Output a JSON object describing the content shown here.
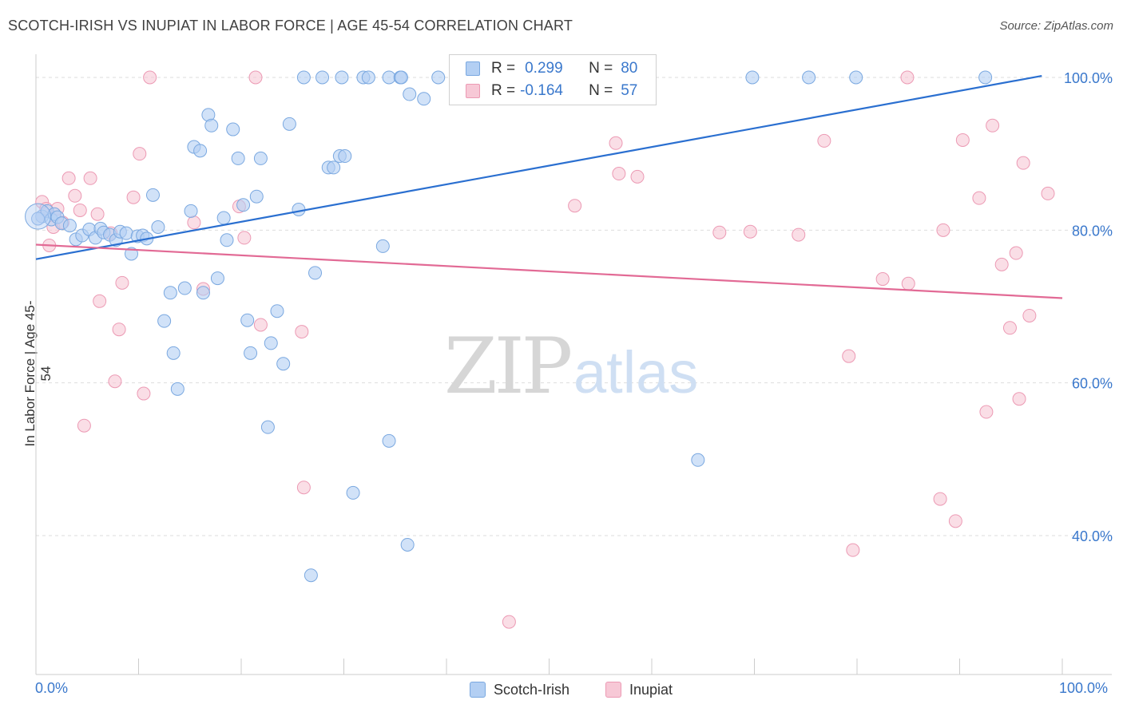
{
  "title": "SCOTCH-IRISH VS INUPIAT IN LABOR FORCE | AGE 45-54 CORRELATION CHART",
  "source": "Source: ZipAtlas.com",
  "watermark_zip": "ZIP",
  "watermark_atlas": "atlas",
  "legend": {
    "r_label": "R =",
    "n_label": "N =",
    "rows": [
      {
        "r": "0.299",
        "n": "80"
      },
      {
        "r": "-0.164",
        "n": "57"
      }
    ]
  },
  "colors": {
    "blue_fill": "#b3cff3",
    "blue_stroke": "#7aa8e0",
    "blue_line": "#2a6fd0",
    "pink_fill": "#f7c8d6",
    "pink_stroke": "#ec9ab4",
    "pink_line": "#e26a95",
    "axis_text": "#3a78cc"
  },
  "chart_data": {
    "type": "scatter",
    "title": "SCOTCH-IRISH VS INUPIAT IN LABOR FORCE | AGE 45-54 CORRELATION CHART",
    "xlabel": "",
    "ylabel": "In Labor Force | Age 45-54",
    "xlim": [
      0,
      100
    ],
    "ylim": [
      20,
      102
    ],
    "x_tick_labels": [
      "0.0%",
      "100.0%"
    ],
    "y_ticks": [
      100,
      80,
      60,
      40
    ],
    "y_tick_labels": [
      "100.0%",
      "80.0%",
      "60.0%",
      "40.0%"
    ],
    "grid": true,
    "legend_position": "bottom-center",
    "series": [
      {
        "name": "Scotch-Irish",
        "trend": {
          "x": [
            0,
            98
          ],
          "y": [
            76.2,
            100.2
          ]
        },
        "points": [
          [
            0.6,
            81.8
          ],
          [
            1.1,
            82.5
          ],
          [
            1.5,
            81.4
          ],
          [
            1.8,
            82.1
          ],
          [
            2.1,
            81.7
          ],
          [
            2.5,
            80.9
          ],
          [
            3.3,
            80.6
          ],
          [
            3.9,
            78.8
          ],
          [
            4.5,
            79.3
          ],
          [
            5.2,
            80.1
          ],
          [
            5.8,
            79.0
          ],
          [
            6.3,
            80.2
          ],
          [
            6.6,
            79.7
          ],
          [
            7.2,
            79.4
          ],
          [
            7.8,
            78.7
          ],
          [
            8.2,
            79.8
          ],
          [
            8.8,
            79.6
          ],
          [
            9.3,
            76.9
          ],
          [
            9.9,
            79.2
          ],
          [
            10.4,
            79.3
          ],
          [
            10.8,
            78.9
          ],
          [
            11.4,
            84.6
          ],
          [
            11.9,
            80.4
          ],
          [
            12.5,
            68.1
          ],
          [
            13.1,
            71.8
          ],
          [
            13.4,
            63.9
          ],
          [
            13.8,
            59.2
          ],
          [
            14.5,
            72.4
          ],
          [
            15.1,
            82.5
          ],
          [
            15.4,
            90.9
          ],
          [
            16.0,
            90.4
          ],
          [
            16.3,
            71.8
          ],
          [
            16.8,
            95.1
          ],
          [
            17.1,
            93.7
          ],
          [
            17.7,
            73.7
          ],
          [
            18.3,
            81.6
          ],
          [
            18.6,
            78.7
          ],
          [
            19.2,
            93.2
          ],
          [
            19.7,
            89.4
          ],
          [
            20.2,
            83.3
          ],
          [
            20.6,
            68.2
          ],
          [
            20.9,
            63.9
          ],
          [
            21.5,
            84.4
          ],
          [
            21.9,
            89.4
          ],
          [
            22.6,
            54.2
          ],
          [
            22.9,
            65.2
          ],
          [
            23.5,
            69.4
          ],
          [
            24.1,
            62.5
          ],
          [
            24.7,
            93.9
          ],
          [
            25.6,
            82.7
          ],
          [
            26.8,
            34.8
          ],
          [
            27.2,
            74.4
          ],
          [
            28.5,
            88.2
          ],
          [
            29.0,
            88.2
          ],
          [
            29.6,
            89.7
          ],
          [
            30.1,
            89.7
          ],
          [
            30.9,
            45.6
          ],
          [
            33.8,
            77.9
          ],
          [
            34.4,
            52.4
          ],
          [
            36.2,
            38.8
          ],
          [
            36.4,
            97.8
          ],
          [
            37.8,
            97.2
          ],
          [
            26.1,
            100
          ],
          [
            27.9,
            100
          ],
          [
            29.8,
            100
          ],
          [
            31.9,
            100
          ],
          [
            32.4,
            100
          ],
          [
            34.4,
            100
          ],
          [
            35.5,
            100
          ],
          [
            35.6,
            100
          ],
          [
            39.2,
            100
          ],
          [
            41.0,
            100
          ],
          [
            42.6,
            100
          ],
          [
            43.8,
            100
          ],
          [
            64.5,
            49.9
          ],
          [
            69.8,
            100
          ],
          [
            75.3,
            100
          ],
          [
            79.9,
            100
          ],
          [
            92.5,
            100
          ],
          [
            0.2,
            81.5
          ]
        ]
      },
      {
        "name": "Inupiat",
        "trend": {
          "x": [
            0,
            100
          ],
          "y": [
            78.1,
            71.1
          ]
        },
        "points": [
          [
            0.6,
            83.7
          ],
          [
            1.0,
            82.8
          ],
          [
            1.3,
            78.0
          ],
          [
            1.7,
            80.4
          ],
          [
            2.1,
            82.8
          ],
          [
            2.6,
            81.0
          ],
          [
            3.2,
            86.8
          ],
          [
            3.8,
            84.5
          ],
          [
            4.3,
            82.6
          ],
          [
            4.7,
            54.4
          ],
          [
            5.3,
            86.8
          ],
          [
            6.0,
            82.1
          ],
          [
            6.2,
            70.7
          ],
          [
            7.3,
            79.6
          ],
          [
            7.7,
            60.2
          ],
          [
            8.1,
            67.0
          ],
          [
            8.4,
            73.1
          ],
          [
            9.5,
            84.3
          ],
          [
            10.1,
            90.0
          ],
          [
            10.5,
            58.6
          ],
          [
            11.1,
            100.0
          ],
          [
            15.4,
            81.0
          ],
          [
            16.3,
            72.3
          ],
          [
            19.8,
            83.1
          ],
          [
            20.3,
            79.0
          ],
          [
            21.4,
            100.0
          ],
          [
            21.9,
            67.6
          ],
          [
            25.9,
            66.7
          ],
          [
            26.1,
            46.3
          ],
          [
            46.1,
            28.7
          ],
          [
            52.5,
            83.2
          ],
          [
            56.5,
            91.4
          ],
          [
            56.8,
            87.4
          ],
          [
            58.6,
            87.0
          ],
          [
            66.6,
            79.7
          ],
          [
            69.6,
            79.8
          ],
          [
            74.3,
            79.4
          ],
          [
            76.8,
            91.7
          ],
          [
            79.2,
            63.5
          ],
          [
            79.6,
            38.1
          ],
          [
            82.5,
            73.6
          ],
          [
            84.9,
            100.0
          ],
          [
            85.0,
            73.0
          ],
          [
            88.1,
            44.8
          ],
          [
            88.4,
            80.0
          ],
          [
            89.6,
            41.9
          ],
          [
            90.3,
            91.8
          ],
          [
            91.9,
            84.2
          ],
          [
            92.6,
            56.2
          ],
          [
            93.2,
            93.7
          ],
          [
            94.1,
            75.5
          ],
          [
            94.9,
            67.2
          ],
          [
            95.5,
            77.0
          ],
          [
            95.8,
            57.9
          ],
          [
            96.2,
            88.8
          ],
          [
            96.8,
            68.8
          ],
          [
            98.6,
            84.8
          ]
        ]
      }
    ]
  },
  "bottom_legend": [
    "Scotch-Irish",
    "Inupiat"
  ]
}
